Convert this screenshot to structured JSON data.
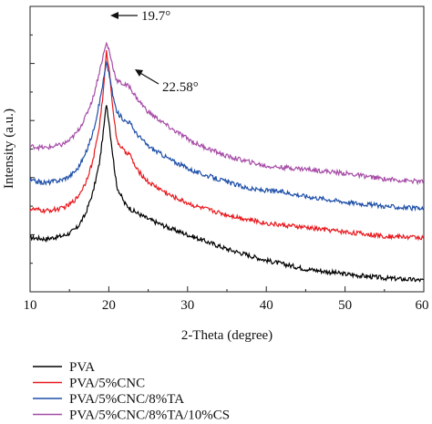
{
  "chart_data": {
    "type": "line",
    "title": "",
    "xlabel": "2-Theta (degree)",
    "ylabel": "Intensity (a.u.)",
    "xlim": [
      10,
      60
    ],
    "x_ticks": [
      10,
      20,
      30,
      40,
      50,
      60
    ],
    "y_ticks_labeled": false,
    "grid": false,
    "legend_position": "below-plot",
    "annotations": [
      {
        "text": "19.7°",
        "x": 19.7
      },
      {
        "text": "22.58°",
        "x": 22.58
      }
    ],
    "series": [
      {
        "name": "PVA",
        "color": "#000000",
        "points": [
          [
            10,
            0.19
          ],
          [
            12,
            0.185
          ],
          [
            14,
            0.195
          ],
          [
            15,
            0.205
          ],
          [
            16,
            0.225
          ],
          [
            17,
            0.27
          ],
          [
            18,
            0.35
          ],
          [
            18.8,
            0.45
          ],
          [
            19.3,
            0.56
          ],
          [
            19.7,
            0.66
          ],
          [
            20.0,
            0.6
          ],
          [
            20.5,
            0.48
          ],
          [
            21,
            0.37
          ],
          [
            22,
            0.31
          ],
          [
            23,
            0.285
          ],
          [
            25,
            0.255
          ],
          [
            28,
            0.22
          ],
          [
            31,
            0.19
          ],
          [
            35,
            0.15
          ],
          [
            40,
            0.11
          ],
          [
            45,
            0.08
          ],
          [
            50,
            0.062
          ],
          [
            55,
            0.048
          ],
          [
            60,
            0.04
          ]
        ]
      },
      {
        "name": "PVA/5%CNC",
        "color": "#e8191e",
        "points": [
          [
            10,
            0.29
          ],
          [
            12,
            0.283
          ],
          [
            14,
            0.292
          ],
          [
            15,
            0.305
          ],
          [
            16,
            0.33
          ],
          [
            17,
            0.38
          ],
          [
            18,
            0.46
          ],
          [
            18.8,
            0.58
          ],
          [
            19.3,
            0.7
          ],
          [
            19.7,
            0.84
          ],
          [
            20.0,
            0.79
          ],
          [
            20.5,
            0.65
          ],
          [
            21,
            0.53
          ],
          [
            22,
            0.49
          ],
          [
            22.6,
            0.485
          ],
          [
            23.5,
            0.43
          ],
          [
            25,
            0.385
          ],
          [
            28,
            0.335
          ],
          [
            31,
            0.3
          ],
          [
            35,
            0.27
          ],
          [
            40,
            0.24
          ],
          [
            45,
            0.225
          ],
          [
            50,
            0.21
          ],
          [
            55,
            0.195
          ],
          [
            60,
            0.19
          ]
        ]
      },
      {
        "name": "PVA/5%CNC/8%TA",
        "color": "#1e4fa8",
        "points": [
          [
            10,
            0.39
          ],
          [
            12,
            0.382
          ],
          [
            14,
            0.392
          ],
          [
            15,
            0.405
          ],
          [
            16,
            0.43
          ],
          [
            17,
            0.48
          ],
          [
            18,
            0.56
          ],
          [
            18.8,
            0.66
          ],
          [
            19.3,
            0.74
          ],
          [
            19.7,
            0.8
          ],
          [
            20.0,
            0.77
          ],
          [
            20.5,
            0.69
          ],
          [
            21,
            0.63
          ],
          [
            22,
            0.6
          ],
          [
            22.6,
            0.595
          ],
          [
            23.5,
            0.555
          ],
          [
            25,
            0.51
          ],
          [
            28,
            0.46
          ],
          [
            31,
            0.42
          ],
          [
            35,
            0.385
          ],
          [
            38,
            0.36
          ],
          [
            40,
            0.355
          ],
          [
            42,
            0.35
          ],
          [
            45,
            0.335
          ],
          [
            50,
            0.315
          ],
          [
            55,
            0.3
          ],
          [
            60,
            0.29
          ]
        ]
      },
      {
        "name": "PVA/5%CNC/8%TA/10%CS",
        "color": "#a64ca6",
        "points": [
          [
            10,
            0.51
          ],
          [
            12,
            0.504
          ],
          [
            14,
            0.515
          ],
          [
            15,
            0.53
          ],
          [
            16,
            0.56
          ],
          [
            17,
            0.61
          ],
          [
            18,
            0.68
          ],
          [
            18.8,
            0.77
          ],
          [
            19.3,
            0.83
          ],
          [
            19.7,
            0.87
          ],
          [
            20.0,
            0.85
          ],
          [
            20.5,
            0.79
          ],
          [
            21,
            0.74
          ],
          [
            22,
            0.725
          ],
          [
            22.6,
            0.72
          ],
          [
            23.5,
            0.68
          ],
          [
            25,
            0.63
          ],
          [
            28,
            0.57
          ],
          [
            31,
            0.52
          ],
          [
            35,
            0.475
          ],
          [
            40,
            0.44
          ],
          [
            45,
            0.43
          ],
          [
            50,
            0.415
          ],
          [
            55,
            0.395
          ],
          [
            60,
            0.385
          ]
        ]
      }
    ]
  }
}
